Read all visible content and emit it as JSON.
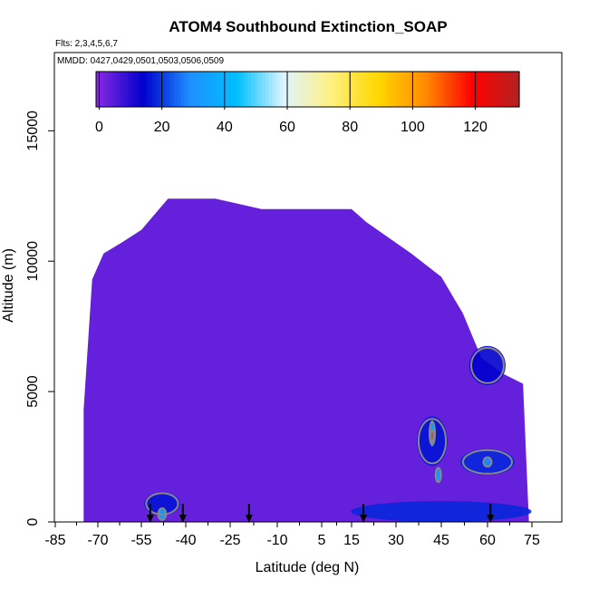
{
  "chart_data": {
    "type": "heatmap",
    "title": "ATOM4 Southbound Extinction_SOAP",
    "flights_note": "Flts: 2,3,4,5,6,7",
    "dates_note": "MMDD: 0427,0429,0501,0503,0506,0509",
    "xlabel": "Latitude (deg N)",
    "ylabel": "Altitude (m)",
    "x_ticks": [
      -85,
      -70,
      -55,
      -40,
      -25,
      -10,
      5,
      15,
      30,
      45,
      60,
      75
    ],
    "y_ticks": [
      0,
      5000,
      10000,
      15000
    ],
    "xlim": [
      -85,
      82
    ],
    "ylim": [
      0,
      18000
    ],
    "colorbar": {
      "ticks": [
        0,
        20,
        40,
        60,
        80,
        100,
        120
      ],
      "range": [
        -1,
        134
      ],
      "colors": [
        "#8a2be2",
        "#0000cd",
        "#1e90ff",
        "#00bfff",
        "#e0f4ff",
        "#fff080",
        "#ffd700",
        "#ff8c00",
        "#ff0000",
        "#b22222"
      ]
    },
    "background_value": 3,
    "coverage": [
      {
        "lat": -75,
        "top": 4300
      },
      {
        "lat": -72,
        "top": 9300
      },
      {
        "lat": -68,
        "top": 10300
      },
      {
        "lat": -62,
        "top": 10700
      },
      {
        "lat": -55,
        "top": 11200
      },
      {
        "lat": -46,
        "top": 12400
      },
      {
        "lat": -30,
        "top": 12400
      },
      {
        "lat": -15,
        "top": 12000
      },
      {
        "lat": 0,
        "top": 12000
      },
      {
        "lat": 15,
        "top": 12000
      },
      {
        "lat": 20,
        "top": 11500
      },
      {
        "lat": 35,
        "top": 10300
      },
      {
        "lat": 45,
        "top": 9400
      },
      {
        "lat": 52,
        "top": 8000
      },
      {
        "lat": 58,
        "top": 6300
      },
      {
        "lat": 65,
        "top": 5700
      },
      {
        "lat": 72,
        "top": 5300
      },
      {
        "lat": 74,
        "top": 0
      }
    ],
    "features": [
      {
        "lat": 45,
        "alt": 400,
        "lat_width": 60,
        "alt_height": 800,
        "value": 18
      },
      {
        "lat": 42,
        "alt": 3100,
        "lat_width": 10,
        "alt_height": 1900,
        "value": 16
      },
      {
        "lat": 60,
        "alt": 2300,
        "lat_width": 18,
        "alt_height": 1000,
        "value": 18
      },
      {
        "lat": 60,
        "alt": 6000,
        "lat_width": 12,
        "alt_height": 1500,
        "value": 14
      },
      {
        "lat": -48,
        "alt": 700,
        "lat_width": 12,
        "alt_height": 900,
        "value": 16
      },
      {
        "lat": -48,
        "alt": 300,
        "lat_width": 3,
        "alt_height": 500,
        "value": 35
      },
      {
        "lat": 42,
        "alt": 3400,
        "lat_width": 2,
        "alt_height": 1000,
        "value": 38
      },
      {
        "lat": 44,
        "alt": 1800,
        "lat_width": 2,
        "alt_height": 600,
        "value": 34
      },
      {
        "lat": 60,
        "alt": 2300,
        "lat_width": 3,
        "alt_height": 400,
        "value": 30
      },
      {
        "lat": 42,
        "alt": 3300,
        "lat_width": 1,
        "alt_height": 500,
        "value": 132
      }
    ],
    "flight_markers_lat": [
      -52,
      -41,
      -19,
      19,
      61
    ]
  }
}
